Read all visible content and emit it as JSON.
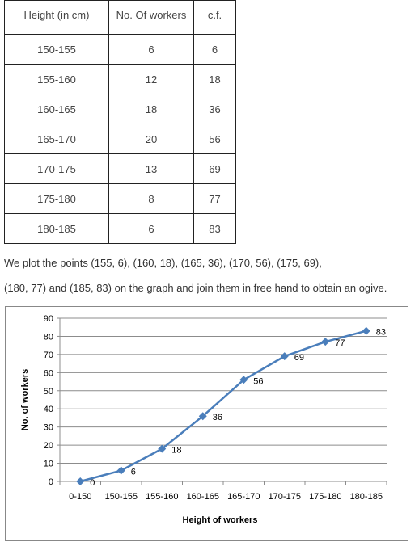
{
  "table": {
    "headers": [
      "Height (in cm)",
      "No. Of workers",
      "c.f."
    ],
    "rows": [
      [
        "150-155",
        "6",
        "6"
      ],
      [
        "155-160",
        "12",
        "18"
      ],
      [
        "160-165",
        "18",
        "36"
      ],
      [
        "165-170",
        "20",
        "56"
      ],
      [
        "170-175",
        "13",
        "69"
      ],
      [
        "175-180",
        "8",
        "77"
      ],
      [
        "180-185",
        "6",
        "83"
      ]
    ]
  },
  "text": {
    "line1": "We plot the points (155, 6), (160, 18), (165, 36), (170, 56), (175, 69),",
    "line2": "(180, 77) and (185, 83) on the graph and join them in free hand to obtain an ogive."
  },
  "chart_data": {
    "type": "line",
    "title": "",
    "xlabel": "Height of workers",
    "ylabel": "No. of workers",
    "categories": [
      "0-150",
      "150-155",
      "155-160",
      "160-165",
      "165-170",
      "170-175",
      "175-180",
      "180-185"
    ],
    "values": [
      0,
      6,
      18,
      36,
      56,
      69,
      77,
      83
    ],
    "data_labels": [
      "0",
      "6",
      "18",
      "36",
      "56",
      "69",
      "77",
      "83"
    ],
    "ylim": [
      0,
      90
    ],
    "yticks": [
      "0",
      "10",
      "20",
      "30",
      "40",
      "50",
      "60",
      "70",
      "80",
      "90"
    ],
    "grid": true,
    "legend": "none",
    "line_color": "#4a7ebb",
    "marker": "diamond"
  }
}
